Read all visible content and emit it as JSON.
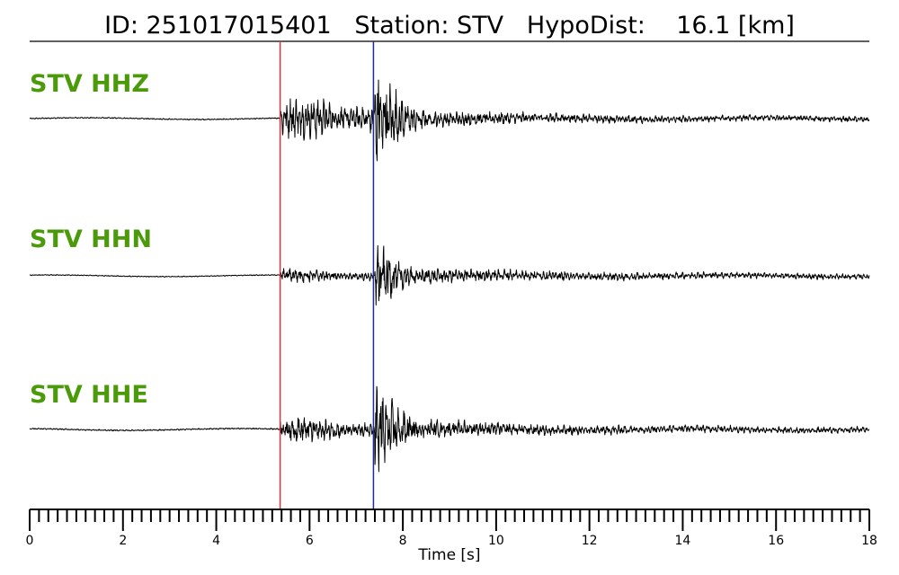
{
  "header": {
    "title": "ID: 251017015401   Station: STV   HypoDist:    16.1 [km]"
  },
  "chart_data": {
    "type": "line",
    "xlabel": "Time [s]",
    "xlim": [
      0,
      18
    ],
    "x_ticks": [
      0,
      2,
      4,
      6,
      8,
      10,
      12,
      14,
      16,
      18
    ],
    "x_minor_step": 0.2,
    "grid": false,
    "label_color": "#4a9a0a",
    "trace_color": "#000000",
    "pick_lines": [
      {
        "time": 5.37,
        "color": "#e8333a"
      },
      {
        "time": 7.37,
        "color": "#1f2a9c"
      }
    ],
    "series": [
      {
        "name": "STV HHZ",
        "onset": 5.37,
        "peak_time": 7.4,
        "pre_amp": 0.025,
        "p_amp": 0.35,
        "s_amp": 1.0
      },
      {
        "name": "STV HHN",
        "onset": 5.37,
        "peak_time": 7.4,
        "pre_amp": 0.02,
        "p_amp": 0.12,
        "s_amp": 0.68
      },
      {
        "name": "STV HHE",
        "onset": 5.37,
        "peak_time": 7.4,
        "pre_amp": 0.025,
        "p_amp": 0.2,
        "s_amp": 0.85
      }
    ]
  }
}
